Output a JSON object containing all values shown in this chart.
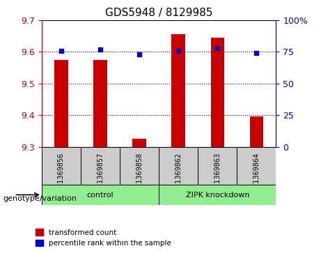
{
  "title": "GDS5948 / 8129985",
  "samples": [
    "GSM1369856",
    "GSM1369857",
    "GSM1369858",
    "GSM1369862",
    "GSM1369863",
    "GSM1369864"
  ],
  "transformed_counts": [
    9.575,
    9.575,
    9.325,
    9.655,
    9.645,
    9.395
  ],
  "percentile_ranks": [
    76,
    77,
    73,
    76,
    78,
    74
  ],
  "ylim_left": [
    9.3,
    9.7
  ],
  "ylim_right": [
    0,
    100
  ],
  "yticks_left": [
    9.3,
    9.4,
    9.5,
    9.6,
    9.7
  ],
  "yticks_right": [
    0,
    25,
    50,
    75,
    100
  ],
  "bar_color": "#cc0000",
  "dot_color": "#0000cc",
  "bar_width": 0.35,
  "groups": [
    {
      "label": "control",
      "indices": [
        0,
        1,
        2
      ],
      "color": "#90ee90"
    },
    {
      "label": "ZIPK knockdown",
      "indices": [
        3,
        4,
        5
      ],
      "color": "#90ee90"
    }
  ],
  "legend_items": [
    {
      "label": "transformed count",
      "color": "#cc0000",
      "marker": "s"
    },
    {
      "label": "percentile rank within the sample",
      "color": "#0000cc",
      "marker": "s"
    }
  ],
  "group_label": "genotype/variation",
  "xlabel_color": "#000000",
  "left_tick_color": "#cc0000",
  "right_tick_color": "#0000cc",
  "grid_linestyle": "dotted",
  "sample_box_color": "#cccccc"
}
